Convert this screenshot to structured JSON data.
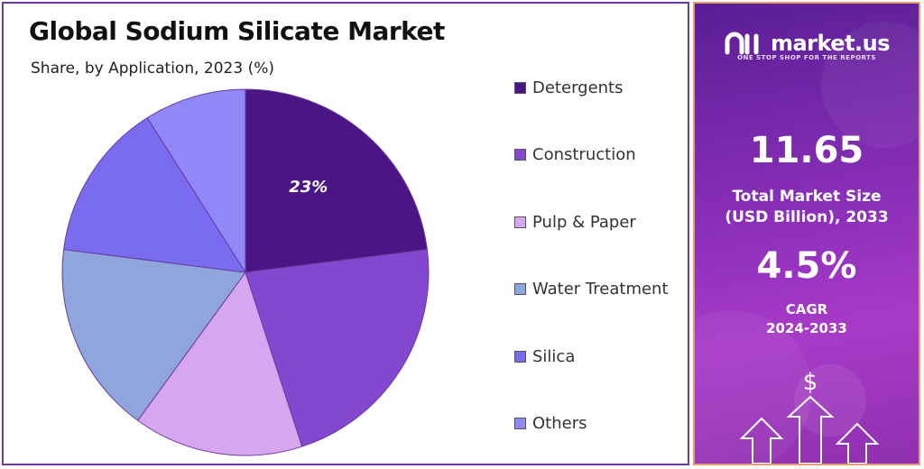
{
  "title": "Global Sodium Silicate Market",
  "subtitle": "Share, by Application, 2023 (%)",
  "chart_data": {
    "type": "pie",
    "categories": [
      "Detergents",
      "Construction",
      "Pulp & Paper",
      "Water Treatment",
      "Silica",
      "Others"
    ],
    "values": [
      23,
      22,
      15,
      17,
      14,
      9
    ],
    "labels": [
      "23%",
      "",
      "",
      "",
      "",
      ""
    ],
    "colors": [
      "#4b1585",
      "#8448d0",
      "#d7a6f0",
      "#8fa6dc",
      "#7a6cf0",
      "#9088f6"
    ],
    "legend_position": "right"
  },
  "side_panel": {
    "brand": "market.us",
    "tagline": "ONE STOP SHOP FOR THE REPORTS",
    "market_size_value": "11.65",
    "market_size_label_line1": "Total Market Size",
    "market_size_label_line2": "(USD Billion), 2033",
    "cagr_value": "4.5%",
    "cagr_label_line1": "CAGR",
    "cagr_label_line2": "2024-2033",
    "dollar_symbol": "$"
  }
}
